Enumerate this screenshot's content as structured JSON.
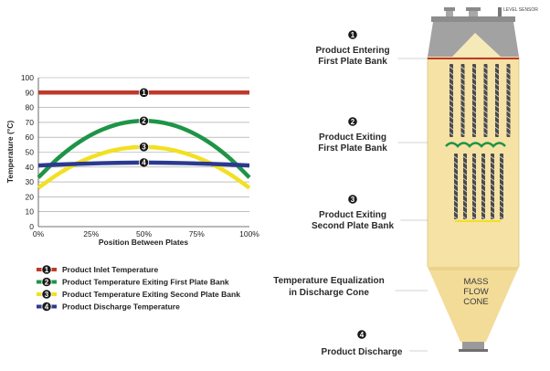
{
  "chart_data": {
    "type": "line",
    "xlabel": "Position Between Plates",
    "ylabel": "Temperature (°C)",
    "x_ticks": [
      "0%",
      "25%",
      "50%",
      "75%",
      "100%"
    ],
    "y_ticks": [
      "0",
      "10",
      "20",
      "30",
      "40",
      "50",
      "60",
      "70",
      "80",
      "90",
      "100"
    ],
    "xlim": [
      0,
      100
    ],
    "ylim": [
      0,
      100
    ],
    "grid": true,
    "legend_position": "bottom",
    "x": [
      0,
      10,
      20,
      30,
      40,
      50,
      60,
      70,
      80,
      90,
      100
    ],
    "series": [
      {
        "name": "Product Inlet Temperature",
        "marker": "1",
        "color": "#c0392b",
        "values": [
          90,
          90,
          90,
          90,
          90,
          90,
          90,
          90,
          90,
          90,
          90
        ],
        "marker_x": 50
      },
      {
        "name": "Product Temperature Exiting First Plate Bank",
        "marker": "2",
        "color": "#1e9447",
        "values": [
          33,
          46.7,
          57.4,
          65,
          69.5,
          71,
          69.5,
          65,
          57.4,
          46.7,
          33
        ],
        "marker_x": 50
      },
      {
        "name": "Product Temperature Exiting Second Plate Bank",
        "marker": "3",
        "color": "#f2e022",
        "values": [
          26,
          35.9,
          43.6,
          49.1,
          52.4,
          53.5,
          52.4,
          49.1,
          43.6,
          35.9,
          26
        ],
        "marker_x": 50
      },
      {
        "name": "Product Discharge Temperature",
        "marker": "4",
        "color": "#2b3990",
        "values": [
          41,
          41.7,
          42.2,
          42.6,
          42.9,
          43,
          42.9,
          42.6,
          42.2,
          41.7,
          41
        ],
        "marker_x": 50
      }
    ]
  },
  "legend": [
    {
      "marker": "1",
      "label": "Product Inlet Temperature",
      "color": "#c0392b"
    },
    {
      "marker": "2",
      "label": "Product Temperature Exiting First Plate Bank",
      "color": "#1e9447"
    },
    {
      "marker": "3",
      "label": "Product Temperature Exiting Second Plate Bank",
      "color": "#f2e022"
    },
    {
      "marker": "4",
      "label": "Product Discharge Temperature",
      "color": "#2b3990"
    }
  ],
  "diagram": {
    "level_sensor_label": "LEVEL SENSOR",
    "cone_label": [
      "MASS",
      "FLOW",
      "CONE"
    ],
    "stages": [
      {
        "marker": "1",
        "lines": [
          "Product Entering",
          "First Plate Bank"
        ]
      },
      {
        "marker": "2",
        "lines": [
          "Product Exiting",
          "First Plate Bank"
        ]
      },
      {
        "marker": "3",
        "lines": [
          "Product Exiting",
          "Second Plate Bank"
        ]
      },
      {
        "marker": "",
        "lines": [
          "Temperature Equalization",
          "in Discharge Cone"
        ]
      },
      {
        "marker": "4",
        "lines": [
          "Product Discharge"
        ]
      }
    ],
    "colors": {
      "product": "#f6e3a6",
      "product_top": "#f9ecbf",
      "steel": "#9a9a9a",
      "steel_dark": "#6f6f6f",
      "inlet_line": "#c0392b",
      "wave": "#1e9447",
      "plate_outlet": "#f2e022"
    }
  }
}
